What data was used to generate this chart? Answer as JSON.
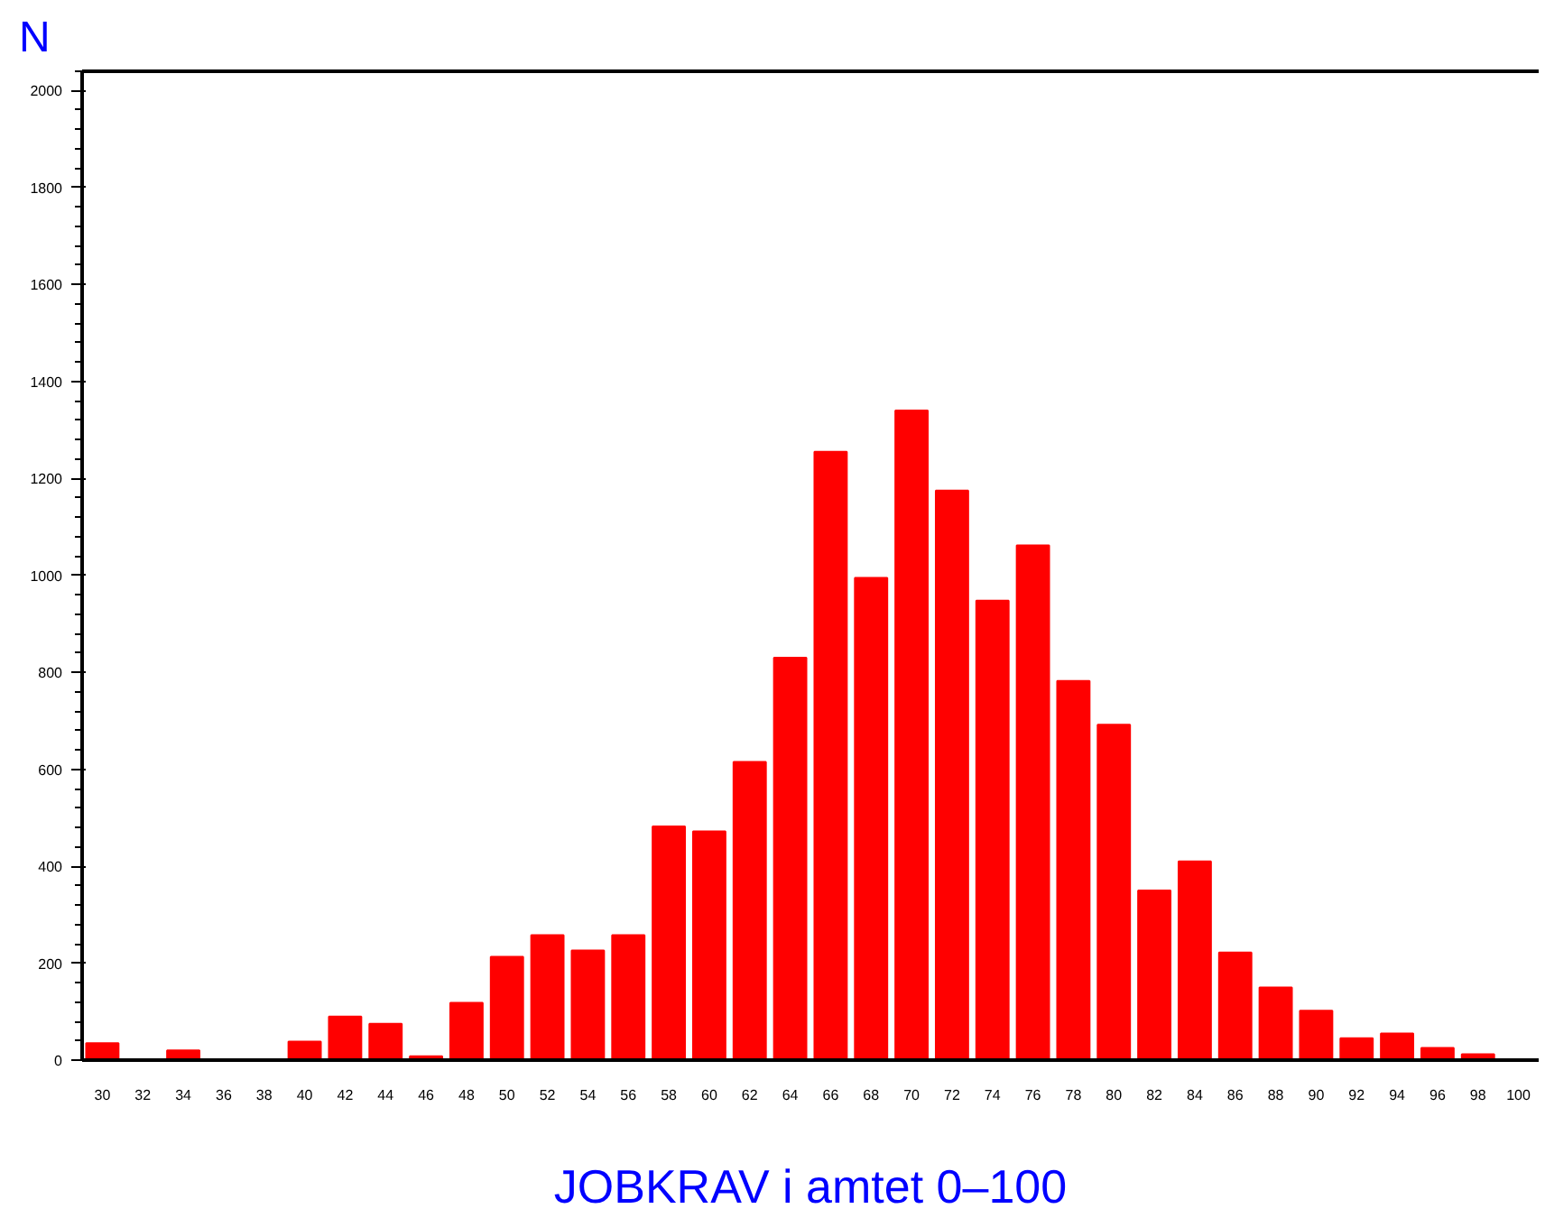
{
  "chart_data": {
    "type": "bar",
    "xlabel": "JOBKRAV i amtet 0–100",
    "ylabel": "N",
    "categories": [
      "30",
      "32",
      "34",
      "36",
      "38",
      "40",
      "42",
      "44",
      "46",
      "48",
      "50",
      "52",
      "54",
      "56",
      "58",
      "60",
      "62",
      "64",
      "66",
      "68",
      "70",
      "72",
      "74",
      "76",
      "78",
      "80",
      "82",
      "84",
      "86",
      "88",
      "90",
      "92",
      "94",
      "96",
      "98",
      "100"
    ],
    "values": [
      35,
      0,
      20,
      0,
      0,
      38,
      90,
      75,
      8,
      118,
      213,
      258,
      226,
      258,
      482,
      472,
      615,
      830,
      1255,
      995,
      1340,
      1175,
      948,
      1062,
      782,
      692,
      350,
      410,
      222,
      150,
      102,
      45,
      55,
      25,
      12,
      0
    ],
    "color": "#ff0000",
    "ylim": [
      0,
      2040
    ],
    "yticks": [
      0,
      200,
      400,
      600,
      800,
      1000,
      1200,
      1400,
      1600,
      1800,
      2000
    ],
    "grid": false
  }
}
